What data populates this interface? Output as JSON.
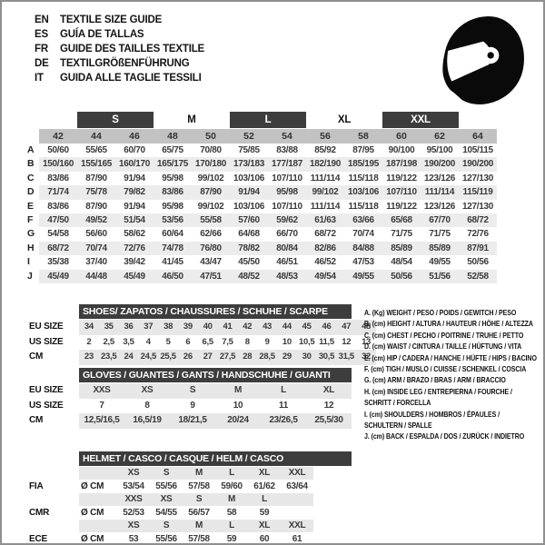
{
  "page": {
    "title_block": {
      "languages": [
        {
          "code": "EN",
          "title": "TEXTILE SIZE GUIDE"
        },
        {
          "code": "ES",
          "title": "GUÍA DE TALLAS"
        },
        {
          "code": "FR",
          "title": "GUIDE DES TAILLES TEXTILE"
        },
        {
          "code": "DE",
          "title": "TEXTILGRÖßENFÜHRUNG"
        },
        {
          "code": "IT",
          "title": "GUIDA ALLE TAGLIE TESSILI"
        }
      ]
    },
    "icons": {
      "helmet": "racing-helmet-icon"
    },
    "colors": {
      "dark_bar": "#3d3d3d",
      "header_row": "#c2c2c2",
      "row_band": "#ececec",
      "lower_band": "#e7e7e7",
      "text": "#3a3a3a"
    }
  },
  "main_table": {
    "size_groups": [
      {
        "label": "S",
        "dark": true
      },
      {
        "label": "M",
        "dark": false
      },
      {
        "label": "L",
        "dark": true
      },
      {
        "label": "XL",
        "dark": false
      },
      {
        "label": "XXL",
        "dark": true
      }
    ],
    "columns": [
      "42",
      "44",
      "46",
      "48",
      "50",
      "52",
      "54",
      "56",
      "58",
      "60",
      "62",
      "64"
    ],
    "rows": [
      {
        "label": "A",
        "values": [
          "50/60",
          "55/65",
          "60/70",
          "65/75",
          "70/80",
          "75/85",
          "83/88",
          "85/92",
          "87/95",
          "90/100",
          "95/100",
          "105/115"
        ]
      },
      {
        "label": "B",
        "values": [
          "150/160",
          "155/165",
          "160/170",
          "165/175",
          "170/180",
          "173/183",
          "177/187",
          "182/190",
          "185/195",
          "187/198",
          "190/200",
          "190/200"
        ]
      },
      {
        "label": "C",
        "values": [
          "83/86",
          "87/90",
          "91/94",
          "95/98",
          "99/102",
          "103/106",
          "107/110",
          "111/114",
          "115/118",
          "119/122",
          "123/126",
          "127/130"
        ]
      },
      {
        "label": "D",
        "values": [
          "71/74",
          "75/78",
          "79/82",
          "83/86",
          "87/90",
          "91/94",
          "95/98",
          "99/102",
          "103/106",
          "107/110",
          "111/114",
          "115/119"
        ]
      },
      {
        "label": "E",
        "values": [
          "83/86",
          "87/90",
          "91/94",
          "95/98",
          "99/102",
          "103/106",
          "107/110",
          "111/114",
          "115/118",
          "119/122",
          "123/126",
          "127/130"
        ]
      },
      {
        "label": "F",
        "values": [
          "47/50",
          "49/52",
          "51/54",
          "53/56",
          "55/58",
          "57/60",
          "59/62",
          "61/63",
          "63/66",
          "65/68",
          "67/70",
          "68/72"
        ]
      },
      {
        "label": "G",
        "values": [
          "54/58",
          "56/60",
          "58/62",
          "60/64",
          "62/66",
          "64/68",
          "66/70",
          "68/72",
          "70/74",
          "71/75",
          "71/75",
          "72/76"
        ]
      },
      {
        "label": "H",
        "values": [
          "68/72",
          "70/74",
          "72/76",
          "74/78",
          "76/80",
          "78/82",
          "80/84",
          "82/86",
          "84/88",
          "85/89",
          "85/89",
          "87/91"
        ]
      },
      {
        "label": "I",
        "values": [
          "35/38",
          "37/40",
          "39/42",
          "41/45",
          "43/47",
          "45/50",
          "46/51",
          "46/52",
          "47/53",
          "48/54",
          "49/55",
          "50/56"
        ]
      },
      {
        "label": "J",
        "values": [
          "45/49",
          "44/48",
          "45/49",
          "46/50",
          "47/51",
          "48/52",
          "48/53",
          "49/54",
          "49/55",
          "50/56",
          "51/56",
          "52/58"
        ]
      }
    ]
  },
  "shoes_table": {
    "title": "SHOES/ ZAPATOS / CHAUSSURES / SCHUHE / SCARPE",
    "rows": [
      {
        "label": "EU SIZE",
        "band": true,
        "values": [
          "34",
          "35",
          "36",
          "37",
          "38",
          "39",
          "40",
          "41",
          "42",
          "43",
          "44",
          "45",
          "46",
          "47",
          "48"
        ]
      },
      {
        "label": "US SIZE",
        "band": false,
        "values": [
          "2",
          "2,5",
          "3,5",
          "4",
          "5",
          "6",
          "6,5",
          "7,5",
          "8",
          "9",
          "10",
          "10,5",
          "11,5",
          "12",
          "13"
        ]
      },
      {
        "label": "CM",
        "band": true,
        "values": [
          "23",
          "23,5",
          "24",
          "24,5",
          "25,5",
          "26",
          "27",
          "27,5",
          "28",
          "28,5",
          "29",
          "30",
          "30,5",
          "31,5",
          "32"
        ]
      }
    ]
  },
  "gloves_table": {
    "title": "GLOVES / GUANTES / GANTS / HANDSCHUHE / GUANTI",
    "rows": [
      {
        "label": "EU SIZE",
        "band": true,
        "values": [
          "XXS",
          "XS",
          "S",
          "M",
          "L",
          "XL"
        ]
      },
      {
        "label": "US SIZE",
        "band": false,
        "values": [
          "7",
          "8",
          "9",
          "10",
          "11",
          "12"
        ]
      },
      {
        "label": "CM",
        "band": true,
        "values": [
          "12,5/16,5",
          "16,5/19",
          "18/21,5",
          "20/24",
          "23/26,5",
          "25,5/30"
        ]
      }
    ]
  },
  "helmet_table": {
    "title": "HELMET / CASCO / CASQUE / HELM / CASCO",
    "diameter_label": "Ø CM",
    "groups": [
      {
        "standard": "FIA",
        "sizes": [
          "XS",
          "S",
          "M",
          "L",
          "XL",
          "XXL"
        ],
        "values": [
          "53/54",
          "55/56",
          "57/58",
          "59/60",
          "61/62",
          "63/64"
        ]
      },
      {
        "standard": "CMR",
        "sizes": [
          "XXS",
          "XS",
          "S",
          "M",
          "L",
          ""
        ],
        "values": [
          "52/53",
          "54/55",
          "56/57",
          "58",
          "59",
          ""
        ]
      },
      {
        "standard": "ECE",
        "sizes": [
          "XS",
          "S",
          "M",
          "L",
          "XL",
          "XXL"
        ],
        "values": [
          "53",
          "55/56",
          "57/58",
          "59",
          "60",
          "61"
        ]
      }
    ]
  },
  "legend": {
    "lines": [
      "A. (Kg) WEIGHT / PESO / POIDS / GEWITCH / PESO",
      "B. (cm) HEIGHT / ALTURA / HAUTEUR / HÖHE / ALTEZZA",
      "C. (cm) CHEST / PECHO / POITRINE / TRUHE / PETTO",
      "D. (cm) WAIST / CINTURA / TAILLE / HÜFTUNG / VITA",
      "E. (cm) HIP / CADERA / HANCHE / HÜFTE / HIPS /  BACINO",
      "F. (cm) TIGH / MUSLO / CUISSE / SCHENKEL / COSCIA",
      "G. (cm) ARM / BRAZO / BRAS / ARM / BRACCIO",
      "H. (cm) INSIDE LEG / ENTREPIERNA / FOURCHE /",
      "SCHRITT / FORCELLA",
      "I. (cm) SHOULDERS / HOMBROS / ÉPAULES /",
      "SCHULTERN / SPALLE",
      "J. (cm) BACK / ESPALDA / DOS / ZURÜCK / INDIETRO"
    ]
  }
}
